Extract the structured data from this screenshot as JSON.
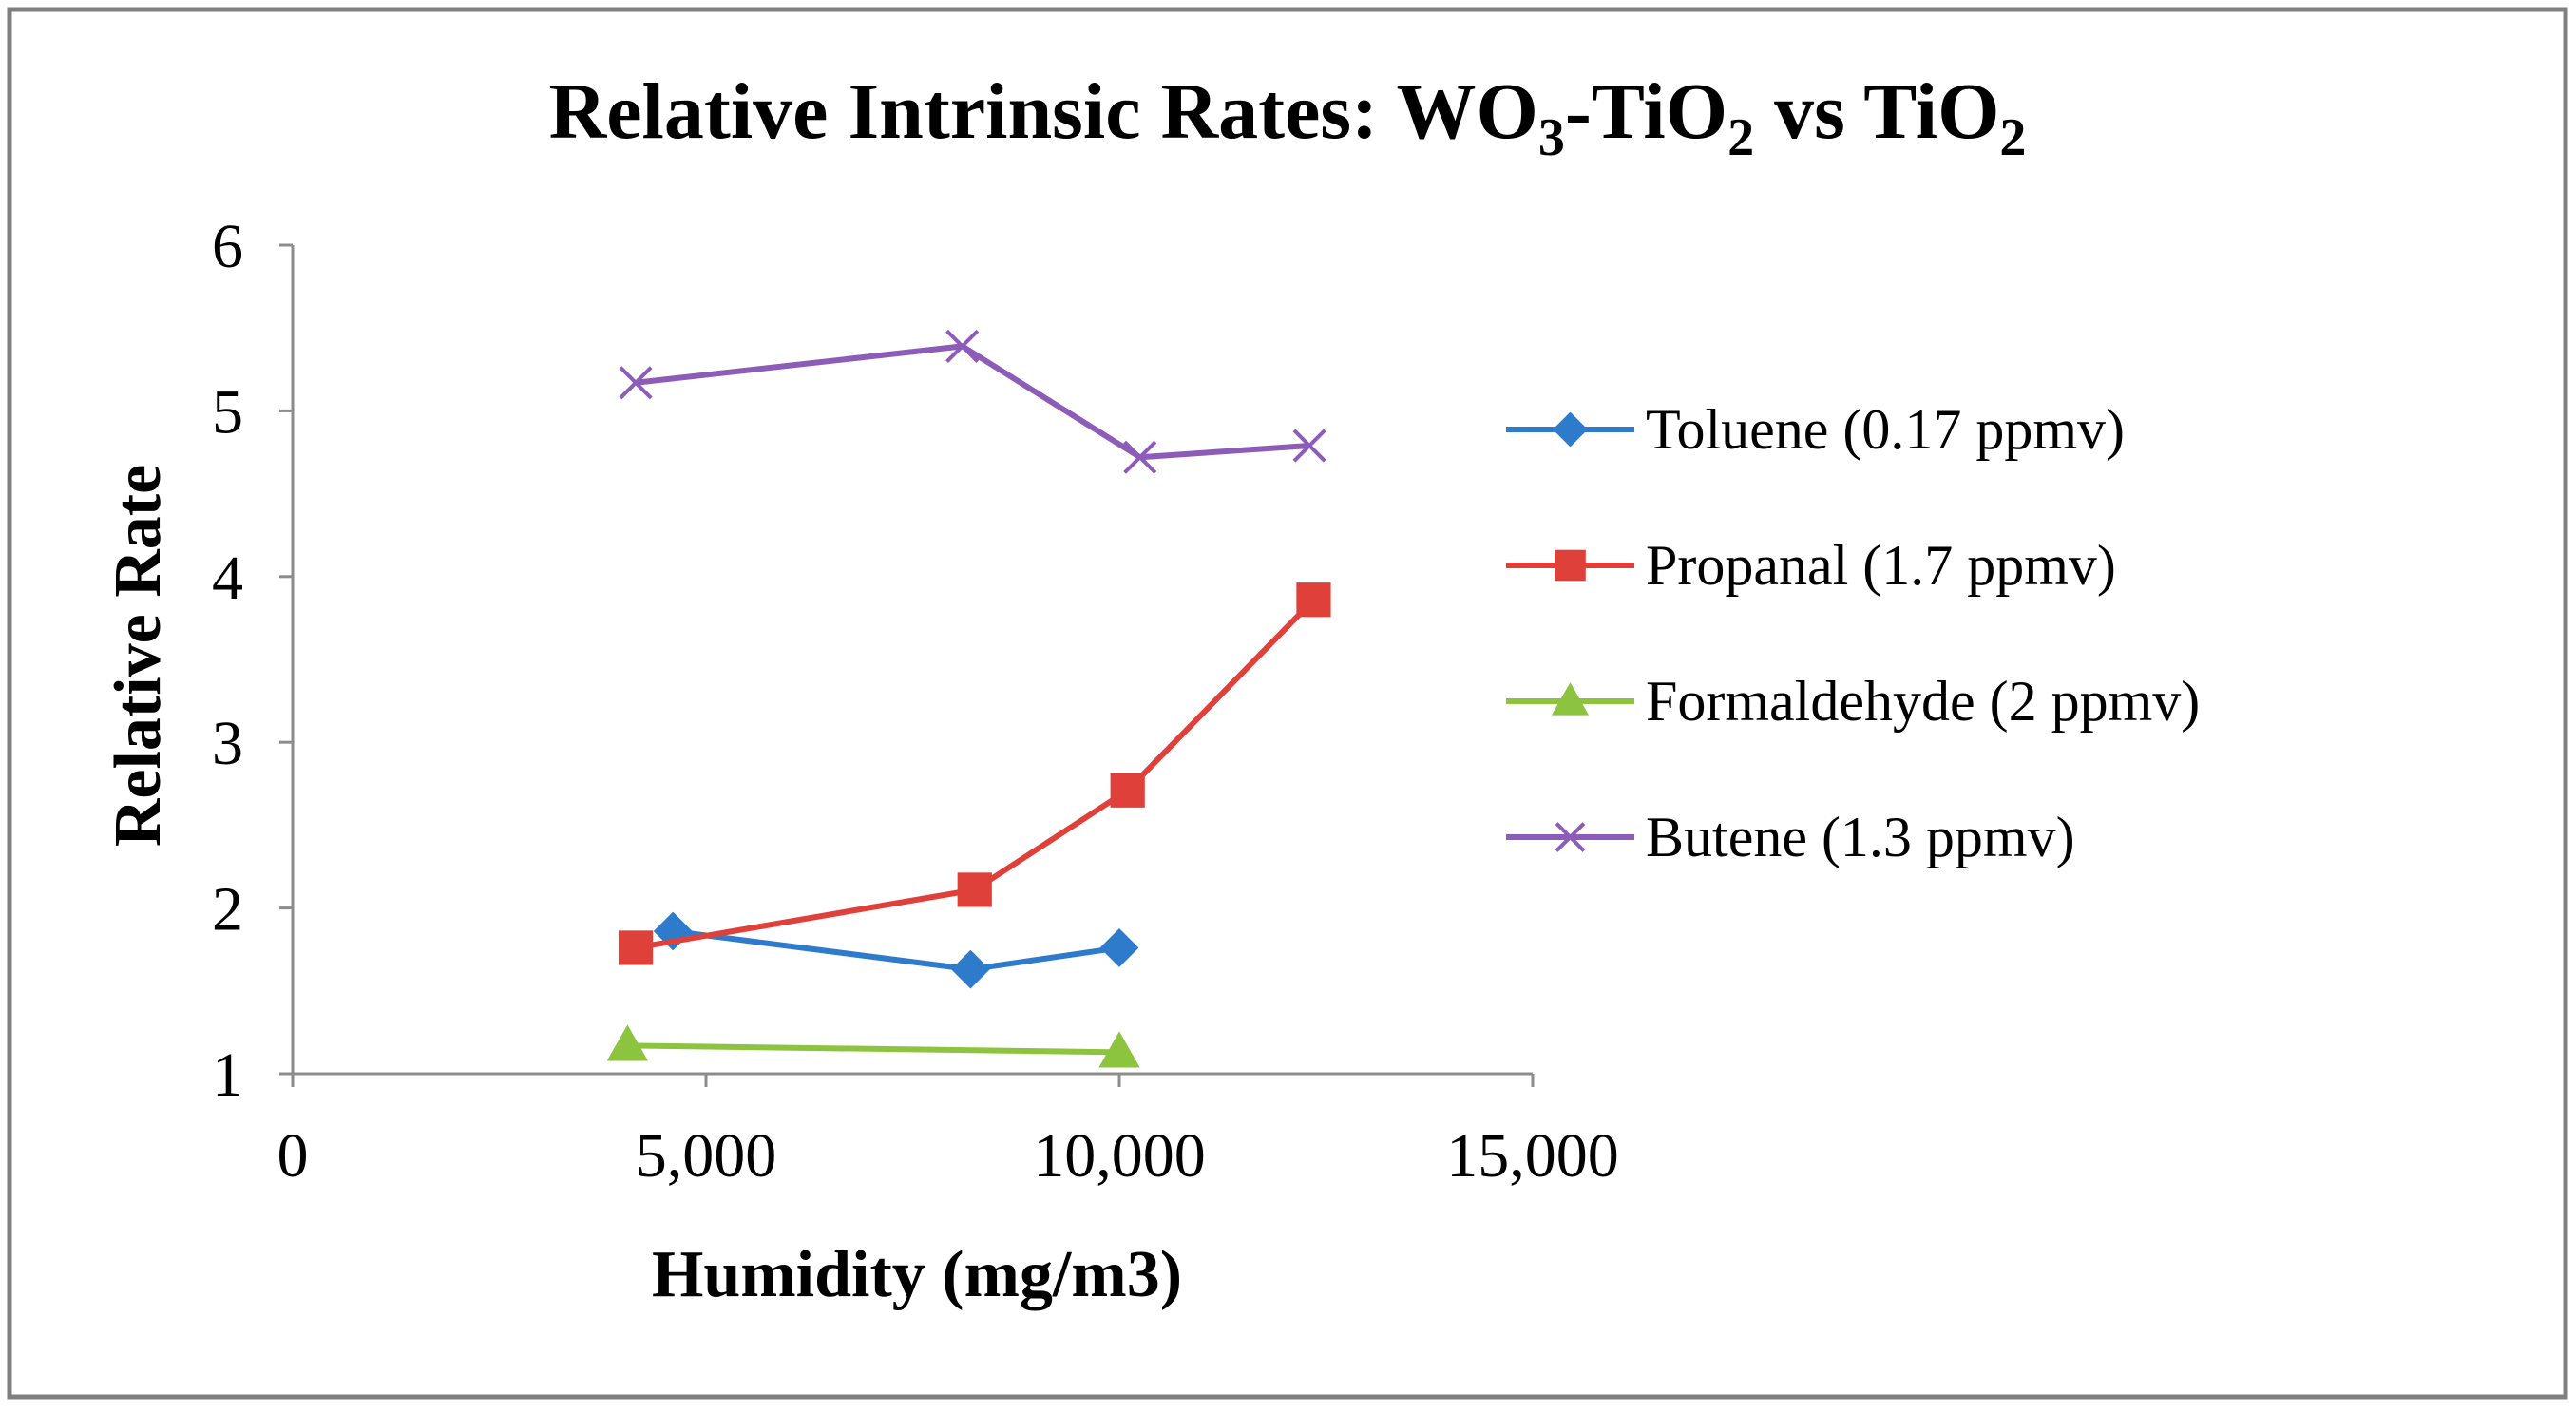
{
  "chart_data": {
    "type": "line",
    "title": {
      "part1": "Relative Intrinsic  Rates: WO",
      "sub1": "3",
      "part2": "-TiO",
      "sub2": "2",
      "part3": " vs TiO",
      "sub3": "2"
    },
    "xlabel": "Humidity (mg/m3)",
    "ylabel": "Relative Rate",
    "xlim": [
      0,
      15000
    ],
    "ylim": [
      1,
      6
    ],
    "xticks": [
      0,
      5000,
      10000,
      15000
    ],
    "xtick_labels": [
      "0",
      "5,000",
      "10,000",
      "15,000"
    ],
    "yticks": [
      1,
      2,
      3,
      4,
      5,
      6
    ],
    "ytick_labels": [
      "1",
      "2",
      "3",
      "4",
      "5",
      "6"
    ],
    "grid": false,
    "legend_position": "right",
    "series": [
      {
        "name": "Toluene (0.17 ppmv)",
        "color": "#2E7BCC",
        "marker": "diamond",
        "x": [
          4600,
          8200,
          10000
        ],
        "y": [
          1.86,
          1.63,
          1.76
        ]
      },
      {
        "name": "Propanal (1.7 ppmv)",
        "color": "#E0403A",
        "marker": "square",
        "x": [
          4150,
          8250,
          10100,
          12350
        ],
        "y": [
          1.76,
          2.11,
          2.71,
          3.86
        ]
      },
      {
        "name": "Formaldehyde (2 ppmv)",
        "color": "#8CC33F",
        "marker": "triangle",
        "x": [
          4050,
          10000
        ],
        "y": [
          1.17,
          1.13
        ]
      },
      {
        "name": "Butene (1.3 ppmv)",
        "color": "#8D5BB8",
        "marker": "x",
        "x": [
          4150,
          8100,
          10250,
          12300
        ],
        "y": [
          5.17,
          5.39,
          4.72,
          4.79
        ]
      }
    ]
  }
}
